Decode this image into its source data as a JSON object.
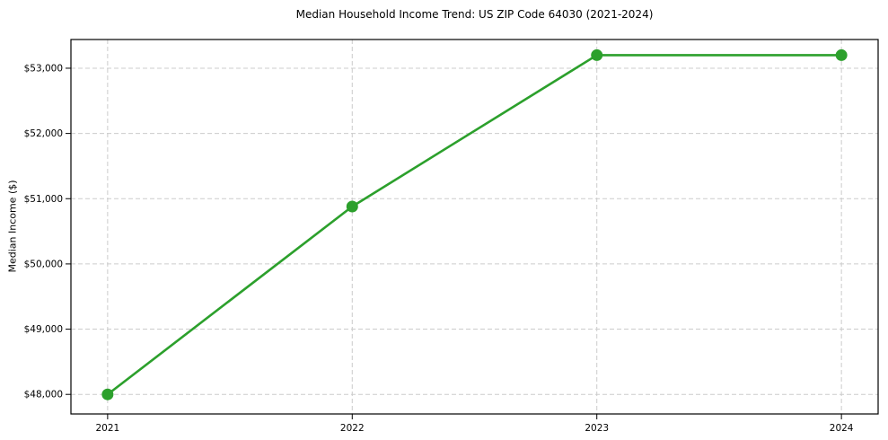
{
  "figure": {
    "background": "#ffffff"
  },
  "chart_data": {
    "type": "line",
    "title": "Median Household Income Trend: US ZIP Code 64030 (2021-2024)",
    "xlabel": "",
    "ylabel": "Median Income ($)",
    "x": [
      2021,
      2022,
      2023,
      2024
    ],
    "x_tick_labels": [
      "2021",
      "2022",
      "2023",
      "2024"
    ],
    "values": [
      48000,
      50880,
      53200,
      53200
    ],
    "y_ticks": [
      48000,
      49000,
      50000,
      51000,
      52000,
      53000
    ],
    "y_tick_labels": [
      "$48,000",
      "$49,000",
      "$50,000",
      "$51,000",
      "$52,000",
      "$53,000"
    ],
    "xlim": [
      2020.85,
      2024.15
    ],
    "ylim": [
      47700,
      53440
    ],
    "grid": true,
    "grid_style": "dashed",
    "grid_color": "#cccccc",
    "line_color": "#2ca02c",
    "marker": "circle",
    "marker_color": "#2ca02c",
    "legend": false
  }
}
